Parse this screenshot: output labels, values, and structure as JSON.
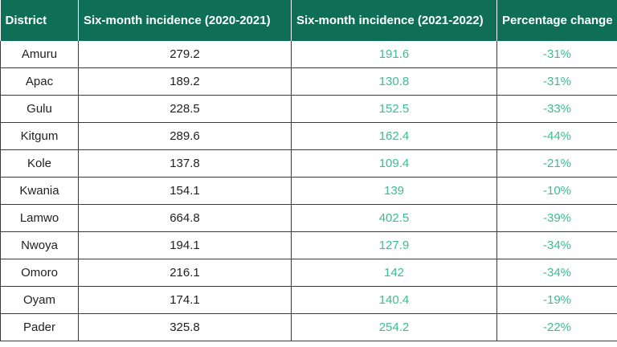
{
  "table": {
    "headers": [
      "District",
      "Six-month incidence (2020-2021)",
      "Six-month incidence (2021-2022)",
      "Percentage change"
    ],
    "rows": [
      {
        "district": "Amuru",
        "inc_2020_2021": "279.2",
        "inc_2021_2022": "191.6",
        "change": "-31%"
      },
      {
        "district": "Apac",
        "inc_2020_2021": "189.2",
        "inc_2021_2022": "130.8",
        "change": "-31%"
      },
      {
        "district": "Gulu",
        "inc_2020_2021": "228.5",
        "inc_2021_2022": "152.5",
        "change": "-33%"
      },
      {
        "district": "Kitgum",
        "inc_2020_2021": "289.6",
        "inc_2021_2022": "162.4",
        "change": "-44%"
      },
      {
        "district": "Kole",
        "inc_2020_2021": "137.8",
        "inc_2021_2022": "109.4",
        "change": "-21%"
      },
      {
        "district": "Kwania",
        "inc_2020_2021": "154.1",
        "inc_2021_2022": "139",
        "change": "-10%"
      },
      {
        "district": "Lamwo",
        "inc_2020_2021": "664.8",
        "inc_2021_2022": "402.5",
        "change": "-39%"
      },
      {
        "district": "Nwoya",
        "inc_2020_2021": "194.1",
        "inc_2021_2022": "127.9",
        "change": "-34%"
      },
      {
        "district": "Omoro",
        "inc_2020_2021": "216.1",
        "inc_2021_2022": "142",
        "change": "-34%"
      },
      {
        "district": "Oyam",
        "inc_2020_2021": "174.1",
        "inc_2021_2022": "140.4",
        "change": "-19%"
      },
      {
        "district": "Pader",
        "inc_2020_2021": "325.8",
        "inc_2021_2022": "254.2",
        "change": "-22%"
      }
    ]
  },
  "colors": {
    "header_bg": "#0f6f56",
    "header_text": "#ffffff",
    "highlight_text": "#3dbb92",
    "body_text": "#1f1f1f"
  }
}
